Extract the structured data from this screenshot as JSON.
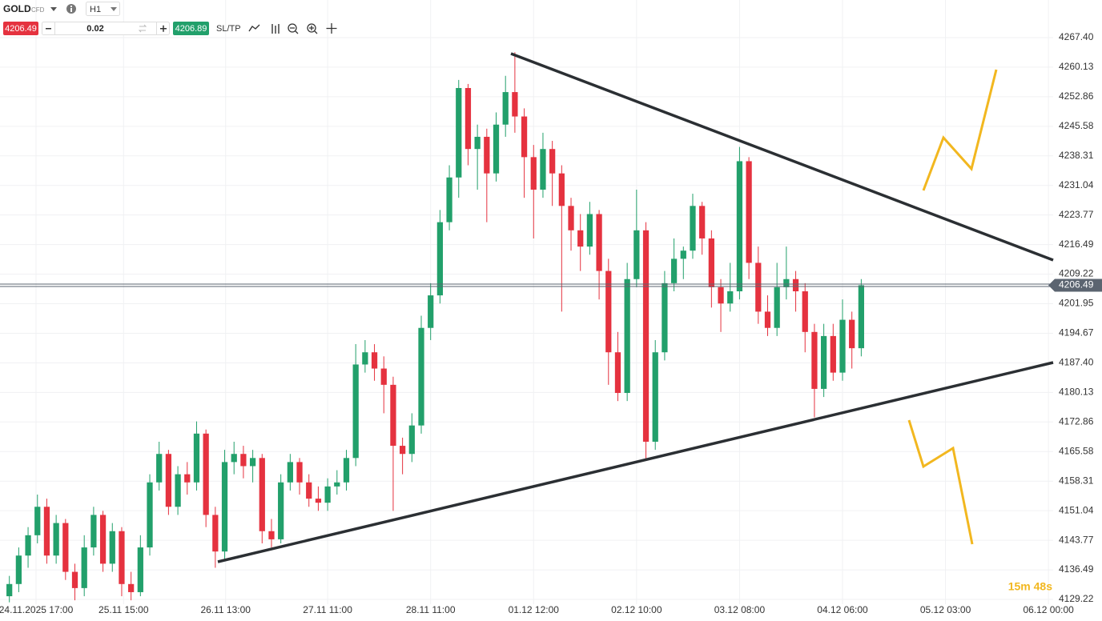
{
  "header": {
    "symbol": "GOLD",
    "instrument_type": "CFD",
    "timeframe": "H1",
    "bid": "4206.49",
    "volume": "0.02",
    "ask": "4206.89",
    "sltp": "SL/TP"
  },
  "chart_data": {
    "type": "candlestick",
    "up_color": "#22a06b",
    "down_color": "#e5323f",
    "grid": true,
    "xlim": [
      -1,
      111.5
    ],
    "ylim": [
      4128.04,
      4276.65
    ],
    "yticks": [
      {
        "value": 4267.4,
        "label": "4267.40"
      },
      {
        "value": 4260.13,
        "label": "4260.13"
      },
      {
        "value": 4252.86,
        "label": "4252.86"
      },
      {
        "value": 4245.58,
        "label": "4245.58"
      },
      {
        "value": 4238.31,
        "label": "4238.31"
      },
      {
        "value": 4231.04,
        "label": "4231.04"
      },
      {
        "value": 4223.77,
        "label": "4223.77"
      },
      {
        "value": 4216.49,
        "label": "4216.49"
      },
      {
        "value": 4209.22,
        "label": "4209.22"
      },
      {
        "value": 4201.95,
        "label": "4201.95"
      },
      {
        "value": 4194.67,
        "label": "4194.67"
      },
      {
        "value": 4187.4,
        "label": "4187.40"
      },
      {
        "value": 4180.13,
        "label": "4180.13"
      },
      {
        "value": 4172.86,
        "label": "4172.86"
      },
      {
        "value": 4165.58,
        "label": "4165.58"
      },
      {
        "value": 4158.31,
        "label": "4158.31"
      },
      {
        "value": 4151.04,
        "label": "4151.04"
      },
      {
        "value": 4143.77,
        "label": "4143.77"
      },
      {
        "value": 4136.49,
        "label": "4136.49"
      },
      {
        "value": 4129.22,
        "label": "4129.22"
      }
    ],
    "xticks": [
      {
        "value": 2.85,
        "label": "24.11.2025 17:00"
      },
      {
        "value": 12.2,
        "label": "25.11 15:00"
      },
      {
        "value": 23.1,
        "label": "26.11 13:00"
      },
      {
        "value": 34.0,
        "label": "27.11 11:00"
      },
      {
        "value": 45.0,
        "label": "28.11 11:00"
      },
      {
        "value": 56.0,
        "label": "01.12 12:00"
      },
      {
        "value": 67.0,
        "label": "02.12 10:00"
      },
      {
        "value": 78.0,
        "label": "03.12 08:00"
      },
      {
        "value": 89.0,
        "label": "04.12 06:00"
      },
      {
        "value": 100.0,
        "label": "05.12 03:00"
      },
      {
        "value": 111.0,
        "label": "06.12 00:00"
      }
    ],
    "candles": [
      [
        4130,
        4135,
        4128.5,
        4133
      ],
      [
        4133,
        4142,
        4131,
        4140
      ],
      [
        4140,
        4147,
        4137,
        4145
      ],
      [
        4145,
        4155,
        4143,
        4152
      ],
      [
        4152,
        4154,
        4138,
        4140
      ],
      [
        4140,
        4150,
        4138,
        4148
      ],
      [
        4148,
        4149,
        4134,
        4136
      ],
      [
        4136,
        4138,
        4129,
        4132
      ],
      [
        4132,
        4145,
        4130,
        4142
      ],
      [
        4142,
        4152,
        4140,
        4150
      ],
      [
        4150,
        4151,
        4136,
        4138
      ],
      [
        4138,
        4148,
        4136,
        4146
      ],
      [
        4146,
        4147,
        4130,
        4133
      ],
      [
        4133,
        4136,
        4129,
        4131
      ],
      [
        4131,
        4145,
        4130,
        4142
      ],
      [
        4142,
        4160,
        4140,
        4158
      ],
      [
        4158,
        4168,
        4156,
        4165
      ],
      [
        4165,
        4166,
        4150,
        4152
      ],
      [
        4152,
        4162,
        4150,
        4160
      ],
      [
        4160,
        4163,
        4155,
        4158
      ],
      [
        4158,
        4173,
        4156,
        4170
      ],
      [
        4170,
        4171,
        4147,
        4150
      ],
      [
        4150,
        4152,
        4137,
        4141
      ],
      [
        4141,
        4166,
        4139,
        4163
      ],
      [
        4163,
        4168,
        4160,
        4165
      ],
      [
        4165,
        4167,
        4159,
        4162
      ],
      [
        4162,
        4166,
        4158,
        4164
      ],
      [
        4164,
        4165,
        4143,
        4146
      ],
      [
        4146,
        4149,
        4142,
        4144
      ],
      [
        4144,
        4160,
        4143,
        4158
      ],
      [
        4158,
        4165,
        4156,
        4163
      ],
      [
        4163,
        4164,
        4155,
        4158
      ],
      [
        4158,
        4160,
        4152,
        4154
      ],
      [
        4154,
        4157,
        4151,
        4153
      ],
      [
        4153,
        4159,
        4151,
        4157
      ],
      [
        4157,
        4161,
        4155,
        4158
      ],
      [
        4158,
        4166,
        4156,
        4164
      ],
      [
        4164,
        4192,
        4162,
        4187
      ],
      [
        4187,
        4193,
        4185,
        4190
      ],
      [
        4190,
        4192,
        4183,
        4186
      ],
      [
        4186,
        4189,
        4175,
        4182
      ],
      [
        4182,
        4184,
        4151,
        4167
      ],
      [
        4167,
        4169,
        4160,
        4165
      ],
      [
        4165,
        4175,
        4163,
        4172
      ],
      [
        4172,
        4199,
        4170,
        4196
      ],
      [
        4196,
        4207,
        4193,
        4204
      ],
      [
        4204,
        4225,
        4202,
        4222
      ],
      [
        4222,
        4236,
        4220,
        4233
      ],
      [
        4233,
        4257,
        4228,
        4255
      ],
      [
        4255,
        4256,
        4236,
        4240
      ],
      [
        4240,
        4246,
        4230,
        4243
      ],
      [
        4243,
        4245,
        4222,
        4234
      ],
      [
        4234,
        4249,
        4232,
        4246
      ],
      [
        4246,
        4258,
        4243,
        4254
      ],
      [
        4254,
        4263.8,
        4244,
        4248
      ],
      [
        4248,
        4250,
        4228,
        4238
      ],
      [
        4238,
        4241,
        4218,
        4230
      ],
      [
        4230,
        4244,
        4228,
        4240
      ],
      [
        4240,
        4242,
        4226,
        4234
      ],
      [
        4234,
        4236,
        4200,
        4226
      ],
      [
        4226,
        4228,
        4215,
        4220
      ],
      [
        4220,
        4224,
        4210,
        4216
      ],
      [
        4216,
        4227,
        4214,
        4224
      ],
      [
        4224,
        4225,
        4203,
        4210
      ],
      [
        4210,
        4213,
        4182,
        4190
      ],
      [
        4190,
        4195,
        4178,
        4180
      ],
      [
        4180,
        4212,
        4178,
        4208
      ],
      [
        4208,
        4230,
        4206,
        4220
      ],
      [
        4220,
        4222,
        4163.5,
        4168
      ],
      [
        4168,
        4193,
        4166,
        4190
      ],
      [
        4190,
        4210,
        4188,
        4207
      ],
      [
        4207,
        4218,
        4205,
        4213
      ],
      [
        4213,
        4216,
        4208,
        4215
      ],
      [
        4215,
        4229,
        4213,
        4226
      ],
      [
        4226,
        4227,
        4214,
        4218
      ],
      [
        4218,
        4220,
        4201,
        4206
      ],
      [
        4206,
        4208,
        4195,
        4202
      ],
      [
        4202,
        4212,
        4200,
        4205
      ],
      [
        4205,
        4240.5,
        4203,
        4237
      ],
      [
        4237,
        4238,
        4208,
        4212
      ],
      [
        4212,
        4216,
        4197,
        4200
      ],
      [
        4200,
        4204,
        4194,
        4196
      ],
      [
        4196,
        4212,
        4194,
        4206
      ],
      [
        4206,
        4216,
        4203,
        4208
      ],
      [
        4208,
        4210,
        4200,
        4205
      ],
      [
        4205,
        4207,
        4190,
        4195
      ],
      [
        4195,
        4197,
        4174,
        4181
      ],
      [
        4181,
        4197,
        4179,
        4194
      ],
      [
        4194,
        4197,
        4183,
        4185
      ],
      [
        4185,
        4203,
        4183,
        4198
      ],
      [
        4198,
        4200,
        4186,
        4191
      ],
      [
        4191,
        4208,
        4189,
        4206.49
      ]
    ],
    "current_price": 4206.49,
    "timer": "15m 48s"
  }
}
